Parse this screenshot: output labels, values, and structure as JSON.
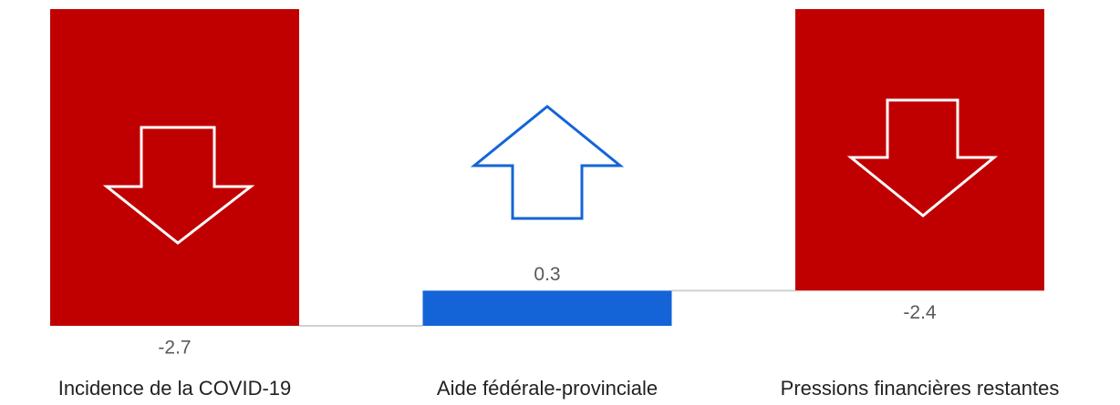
{
  "chart_data": {
    "type": "waterfall",
    "categories": [
      "Incidence de la COVID-19",
      "Aide fédérale-provinciale",
      "Pressions financières restantes"
    ],
    "values": [
      -2.7,
      0.3,
      -2.4
    ],
    "measures": [
      "relative",
      "relative",
      "total"
    ],
    "colors": {
      "negative": "#c00000",
      "positive": "#1464d8"
    }
  }
}
